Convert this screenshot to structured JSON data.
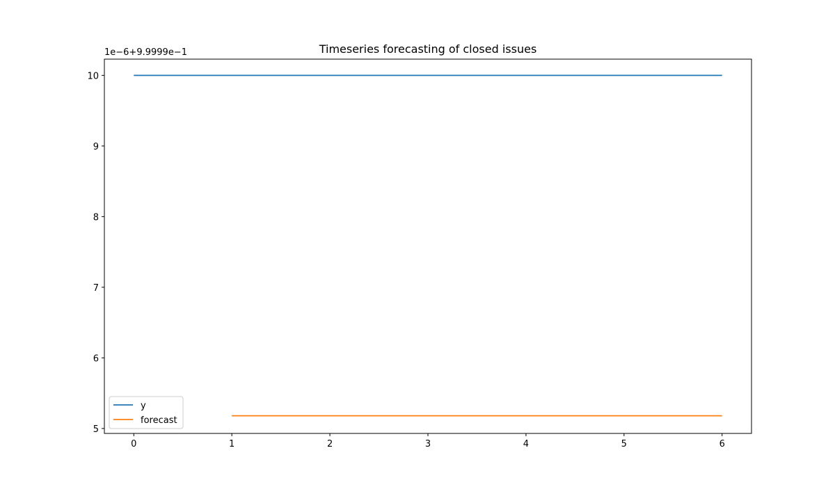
{
  "chart_data": {
    "type": "line",
    "title": "Timeseries forecasting of closed issues",
    "offset_label": "1e−6+9.9999e−1",
    "xlabel": "",
    "ylabel": "",
    "xlim": [
      -0.3,
      6.3
    ],
    "ylim": [
      4.93,
      10.23
    ],
    "x_ticks": [
      0,
      1,
      2,
      3,
      4,
      5,
      6
    ],
    "y_ticks": [
      5,
      6,
      7,
      8,
      9,
      10
    ],
    "grid": false,
    "legend_position": "lower-left",
    "series": [
      {
        "name": "y",
        "color": "#1f77b4",
        "x": [
          0,
          1,
          2,
          3,
          4,
          5,
          6
        ],
        "values": [
          10,
          10,
          10,
          10,
          10,
          10,
          10
        ]
      },
      {
        "name": "forecast",
        "color": "#ff7f0e",
        "x": [
          1,
          2,
          3,
          4,
          5,
          6
        ],
        "values": [
          5.18,
          5.18,
          5.18,
          5.18,
          5.18,
          5.18
        ]
      }
    ]
  }
}
